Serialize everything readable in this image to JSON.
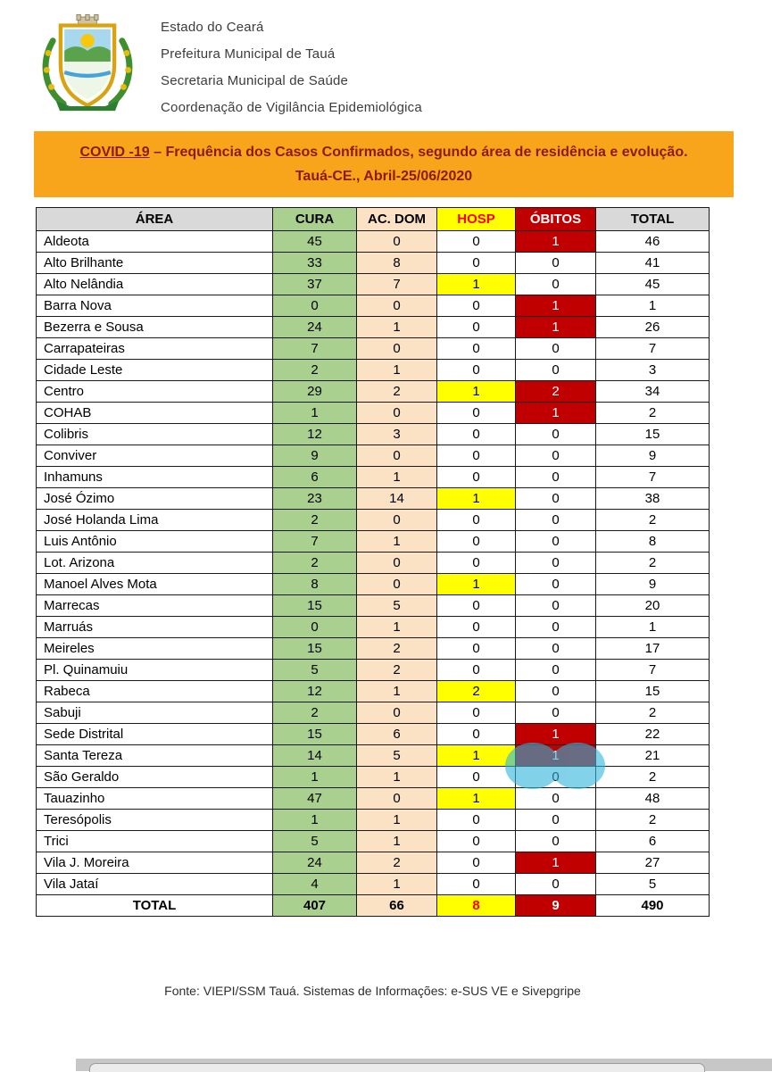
{
  "header": {
    "org_lines": [
      "Estado do Ceará",
      "Prefeitura Municipal de Tauá",
      "Secretaria Municipal de Saúde",
      "Coordenação de Vigilância Epidemiológica"
    ]
  },
  "banner": {
    "title_underlined": "COVID -19",
    "title_rest": " – Frequência dos Casos Confirmados, segundo área de residência e evolução.",
    "subtitle": "Tauá-CE., Abril-25/06/2020"
  },
  "chart_data": {
    "type": "table",
    "title": "COVID -19 – Frequência dos Casos Confirmados, segundo área de residência e evolução. Tauá-CE., Abril-25/06/2020",
    "columns": [
      "ÁREA",
      "CURA",
      "AC. DOM",
      "HOSP",
      "ÓBITOS",
      "TOTAL"
    ],
    "rows": [
      {
        "area": "Aldeota",
        "cura": 45,
        "ac_dom": 0,
        "hosp": 0,
        "obitos": 1,
        "total": 46
      },
      {
        "area": "Alto Brilhante",
        "cura": 33,
        "ac_dom": 8,
        "hosp": 0,
        "obitos": 0,
        "total": 41
      },
      {
        "area": "Alto Nelândia",
        "cura": 37,
        "ac_dom": 7,
        "hosp": 1,
        "obitos": 0,
        "total": 45
      },
      {
        "area": "Barra Nova",
        "cura": 0,
        "ac_dom": 0,
        "hosp": 0,
        "obitos": 1,
        "total": 1
      },
      {
        "area": "Bezerra e Sousa",
        "cura": 24,
        "ac_dom": 1,
        "hosp": 0,
        "obitos": 1,
        "total": 26
      },
      {
        "area": "Carrapateiras",
        "cura": 7,
        "ac_dom": 0,
        "hosp": 0,
        "obitos": 0,
        "total": 7
      },
      {
        "area": "Cidade Leste",
        "cura": 2,
        "ac_dom": 1,
        "hosp": 0,
        "obitos": 0,
        "total": 3
      },
      {
        "area": "Centro",
        "cura": 29,
        "ac_dom": 2,
        "hosp": 1,
        "obitos": 2,
        "total": 34
      },
      {
        "area": "COHAB",
        "cura": 1,
        "ac_dom": 0,
        "hosp": 0,
        "obitos": 1,
        "total": 2
      },
      {
        "area": "Colibris",
        "cura": 12,
        "ac_dom": 3,
        "hosp": 0,
        "obitos": 0,
        "total": 15
      },
      {
        "area": "Conviver",
        "cura": 9,
        "ac_dom": 0,
        "hosp": 0,
        "obitos": 0,
        "total": 9
      },
      {
        "area": "Inhamuns",
        "cura": 6,
        "ac_dom": 1,
        "hosp": 0,
        "obitos": 0,
        "total": 7
      },
      {
        "area": "José Ózimo",
        "cura": 23,
        "ac_dom": 14,
        "hosp": 1,
        "obitos": 0,
        "total": 38
      },
      {
        "area": "José Holanda Lima",
        "cura": 2,
        "ac_dom": 0,
        "hosp": 0,
        "obitos": 0,
        "total": 2
      },
      {
        "area": "Luis Antônio",
        "cura": 7,
        "ac_dom": 1,
        "hosp": 0,
        "obitos": 0,
        "total": 8
      },
      {
        "area": "Lot. Arizona",
        "cura": 2,
        "ac_dom": 0,
        "hosp": 0,
        "obitos": 0,
        "total": 2
      },
      {
        "area": "Manoel Alves Mota",
        "cura": 8,
        "ac_dom": 0,
        "hosp": 1,
        "obitos": 0,
        "total": 9
      },
      {
        "area": "Marrecas",
        "cura": 15,
        "ac_dom": 5,
        "hosp": 0,
        "obitos": 0,
        "total": 20
      },
      {
        "area": "Marruás",
        "cura": 0,
        "ac_dom": 1,
        "hosp": 0,
        "obitos": 0,
        "total": 1
      },
      {
        "area": "Meireles",
        "cura": 15,
        "ac_dom": 2,
        "hosp": 0,
        "obitos": 0,
        "total": 17
      },
      {
        "area": "Pl. Quinamuiu",
        "cura": 5,
        "ac_dom": 2,
        "hosp": 0,
        "obitos": 0,
        "total": 7
      },
      {
        "area": "Rabeca",
        "cura": 12,
        "ac_dom": 1,
        "hosp": 2,
        "obitos": 0,
        "total": 15
      },
      {
        "area": "Sabuji",
        "cura": 2,
        "ac_dom": 0,
        "hosp": 0,
        "obitos": 0,
        "total": 2
      },
      {
        "area": "Sede Distrital",
        "cura": 15,
        "ac_dom": 6,
        "hosp": 0,
        "obitos": 1,
        "total": 22
      },
      {
        "area": "Santa Tereza",
        "cura": 14,
        "ac_dom": 5,
        "hosp": 1,
        "obitos": 1,
        "total": 21
      },
      {
        "area": "São Geraldo",
        "cura": 1,
        "ac_dom": 1,
        "hosp": 0,
        "obitos": 0,
        "total": 2
      },
      {
        "area": "Tauazinho",
        "cura": 47,
        "ac_dom": 0,
        "hosp": 1,
        "obitos": 0,
        "total": 48
      },
      {
        "area": "Teresópolis",
        "cura": 1,
        "ac_dom": 1,
        "hosp": 0,
        "obitos": 0,
        "total": 2
      },
      {
        "area": "Trici",
        "cura": 5,
        "ac_dom": 1,
        "hosp": 0,
        "obitos": 0,
        "total": 6
      },
      {
        "area": "Vila J. Moreira",
        "cura": 24,
        "ac_dom": 2,
        "hosp": 0,
        "obitos": 1,
        "total": 27
      },
      {
        "area": "Vila Jataí",
        "cura": 4,
        "ac_dom": 1,
        "hosp": 0,
        "obitos": 0,
        "total": 5
      }
    ],
    "total_row": {
      "area": "TOTAL",
      "cura": 407,
      "ac_dom": 66,
      "hosp": 8,
      "obitos": 9,
      "total": 490
    }
  },
  "footer": {
    "source": "Fonte: VIEPI/SSM Tauá. Sistemas de Informações: e-SUS VE e Sivepgripe"
  },
  "colors": {
    "banner_bg": "#F9A51B",
    "banner_text": "#8B1A00",
    "header_gray": "#D9D9D9",
    "green": "#A9D08E",
    "cream": "#FBE2C5",
    "yellow": "#FFFF00",
    "red": "#C00000",
    "red_text": "#FF0000",
    "highlight_cyan": "#2EB5DA"
  }
}
